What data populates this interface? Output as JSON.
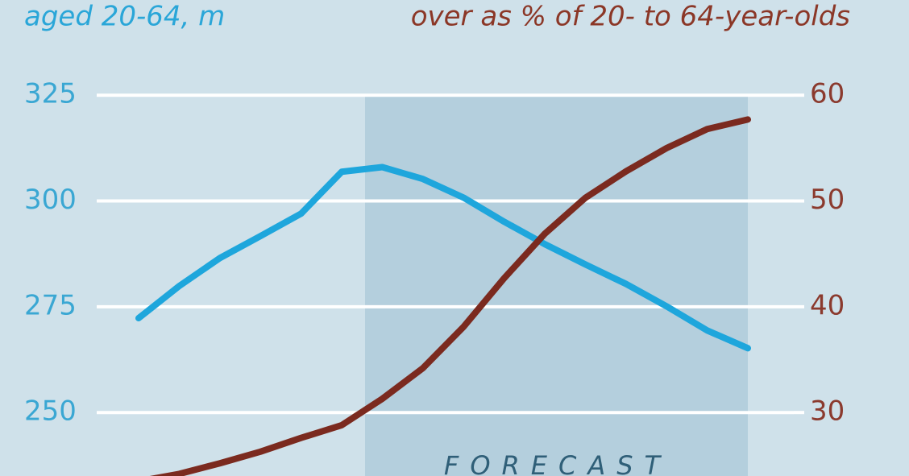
{
  "chart_data": {
    "type": "line",
    "y_label": "aged 20-64, m",
    "y2_label": "over as % of 20- to 64-year-olds",
    "annotation": "FORECAST",
    "categories": [
      null,
      null,
      null,
      null,
      null,
      null,
      null,
      null,
      null,
      null,
      null,
      null,
      null,
      null,
      null,
      null
    ],
    "series": [
      {
        "color": "#1ea6dc",
        "values": [
          272.3,
          279.9,
          286.5,
          291.7,
          297.0,
          306.9,
          308.0,
          305.2,
          300.8,
          295.1,
          289.8,
          285.0,
          280.4,
          275.1,
          269.4,
          265.2
        ]
      },
      {
        "color": "#7b2a1f",
        "axis": "y2",
        "values": [
          23.5,
          24.2,
          25.2,
          26.3,
          27.6,
          28.8,
          31.3,
          34.2,
          38.1,
          42.7,
          46.9,
          50.3,
          52.8,
          55.0,
          56.8,
          57.7
        ]
      }
    ],
    "ylim": [
      235,
      347.5
    ],
    "yticks": [
      250,
      275,
      300,
      325
    ],
    "y2lim": [
      24,
      69
    ],
    "y2ticks": [
      30,
      40,
      50,
      60
    ],
    "grid": true
  }
}
